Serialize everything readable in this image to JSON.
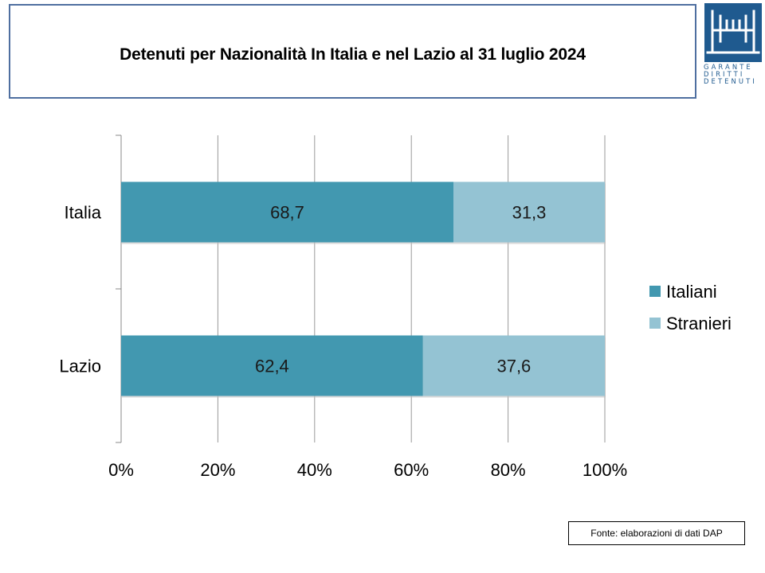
{
  "title": "Detenuti per Nazionalità In Italia e nel Lazio al 31 luglio 2024",
  "logo": {
    "lines": [
      "GARANTE",
      "DIRITTI",
      "DETENUTI"
    ],
    "color": "#1f5a8f"
  },
  "source_note": "Fonte: elaborazioni di dati DAP",
  "chart_data": {
    "type": "bar",
    "orientation": "horizontal",
    "stacking": "percent",
    "categories": [
      "Italia",
      "Lazio"
    ],
    "series": [
      {
        "name": "Italiani",
        "color": "#4298b0",
        "values": [
          68.7,
          62.4
        ],
        "labels": [
          "68,7",
          "62,4"
        ]
      },
      {
        "name": "Stranieri",
        "color": "#94c3d3",
        "values": [
          31.3,
          37.6
        ],
        "labels": [
          "31,3",
          "37,6"
        ]
      }
    ],
    "xlim": [
      0,
      100
    ],
    "x_ticks": [
      "0%",
      "20%",
      "40%",
      "60%",
      "80%",
      "100%"
    ],
    "grid": true,
    "legend_position": "right"
  }
}
